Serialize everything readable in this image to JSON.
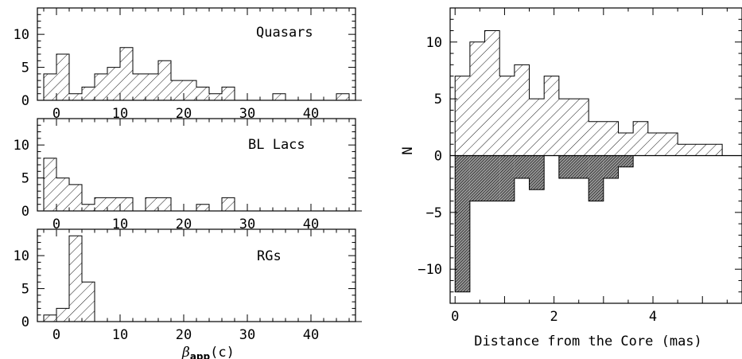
{
  "chart_data": [
    {
      "type": "bar",
      "panel": "left-top",
      "annotation": "Quasars",
      "bin_width": 2,
      "bin_starts": [
        -2,
        0,
        2,
        4,
        6,
        8,
        10,
        12,
        14,
        16,
        18,
        20,
        22,
        24,
        26,
        28,
        30,
        32,
        34,
        36,
        38,
        40,
        42,
        44,
        46
      ],
      "values": [
        4,
        7,
        1,
        2,
        4,
        5,
        8,
        4,
        4,
        6,
        3,
        3,
        2,
        1,
        2,
        0,
        0,
        0,
        1,
        0,
        0,
        0,
        0,
        1,
        0
      ],
      "xlim": [
        -3,
        47
      ],
      "ylim": [
        0,
        14
      ],
      "ytick_labels": [
        "0",
        "5",
        "10"
      ],
      "xtick_labels": [
        "0",
        "10",
        "20",
        "30",
        "40"
      ],
      "hatch": "light"
    },
    {
      "type": "bar",
      "panel": "left-middle",
      "annotation": "BL Lacs",
      "bin_width": 2,
      "bin_starts": [
        -2,
        0,
        2,
        4,
        6,
        8,
        10,
        12,
        14,
        16,
        18,
        20,
        22,
        24,
        26,
        28,
        30,
        32,
        34,
        36,
        38,
        40,
        42,
        44,
        46
      ],
      "values": [
        8,
        5,
        4,
        1,
        2,
        2,
        2,
        0,
        2,
        2,
        0,
        0,
        1,
        0,
        2,
        0,
        0,
        0,
        0,
        0,
        0,
        0,
        0,
        0,
        0
      ],
      "xlim": [
        -3,
        47
      ],
      "ylim": [
        0,
        14
      ],
      "ytick_labels": [
        "0",
        "5",
        "10"
      ],
      "xtick_labels": [
        "0",
        "10",
        "20",
        "30",
        "40"
      ],
      "hatch": "light"
    },
    {
      "type": "bar",
      "panel": "left-bottom",
      "annotation": "RGs",
      "xlabel": "β_app(c)",
      "xlabel_main": "β",
      "xlabel_sub": "app",
      "xlabel_tail": "(c)",
      "bin_width": 2,
      "bin_starts": [
        -2,
        0,
        2,
        4,
        6,
        8,
        10,
        12,
        14,
        16,
        18,
        20,
        22,
        24,
        26,
        28,
        30,
        32,
        34,
        36,
        38,
        40,
        42,
        44,
        46
      ],
      "values": [
        1,
        2,
        13,
        6,
        0,
        0,
        0,
        0,
        0,
        0,
        0,
        0,
        0,
        0,
        0,
        0,
        0,
        0,
        0,
        0,
        0,
        0,
        0,
        0,
        0
      ],
      "xlim": [
        -3,
        47
      ],
      "ylim": [
        0,
        14
      ],
      "ytick_labels": [
        "0",
        "5",
        "10"
      ],
      "xtick_labels": [
        "0",
        "10",
        "20",
        "30",
        "40"
      ],
      "hatch": "light"
    },
    {
      "type": "bar",
      "panel": "right",
      "xlabel": "Distance from the Core (mas)",
      "ylabel": "N",
      "bin_width": 0.3,
      "xlim": [
        -0.1,
        5.8
      ],
      "ylim": [
        -13,
        13
      ],
      "ytick_labels": [
        "−10",
        "−5",
        "0",
        "5",
        "10"
      ],
      "xtick_labels": [
        "0",
        "2",
        "4"
      ],
      "series": [
        {
          "hatch": "light",
          "bin_starts": [
            0,
            0.3,
            0.6,
            0.9,
            1.2,
            1.5,
            1.8,
            2.1,
            2.4,
            2.7,
            3.0,
            3.3,
            3.6,
            3.9,
            4.2,
            4.5,
            4.8,
            5.1
          ],
          "values": [
            7,
            10,
            11,
            7,
            8,
            5,
            7,
            5,
            5,
            3,
            3,
            2,
            3,
            2,
            2,
            1,
            1,
            1
          ]
        },
        {
          "hatch": "dense",
          "bin_starts": [
            0,
            0.3,
            0.6,
            0.9,
            1.2,
            1.5,
            1.8,
            2.1,
            2.4,
            2.7,
            3.0,
            3.3,
            3.6,
            3.9,
            4.2,
            4.5,
            4.8,
            5.1
          ],
          "values": [
            -12,
            -4,
            -4,
            -4,
            -2,
            -3,
            0,
            -2,
            -2,
            -4,
            -2,
            -1,
            0,
            0,
            0,
            0,
            0,
            0
          ]
        }
      ]
    }
  ]
}
